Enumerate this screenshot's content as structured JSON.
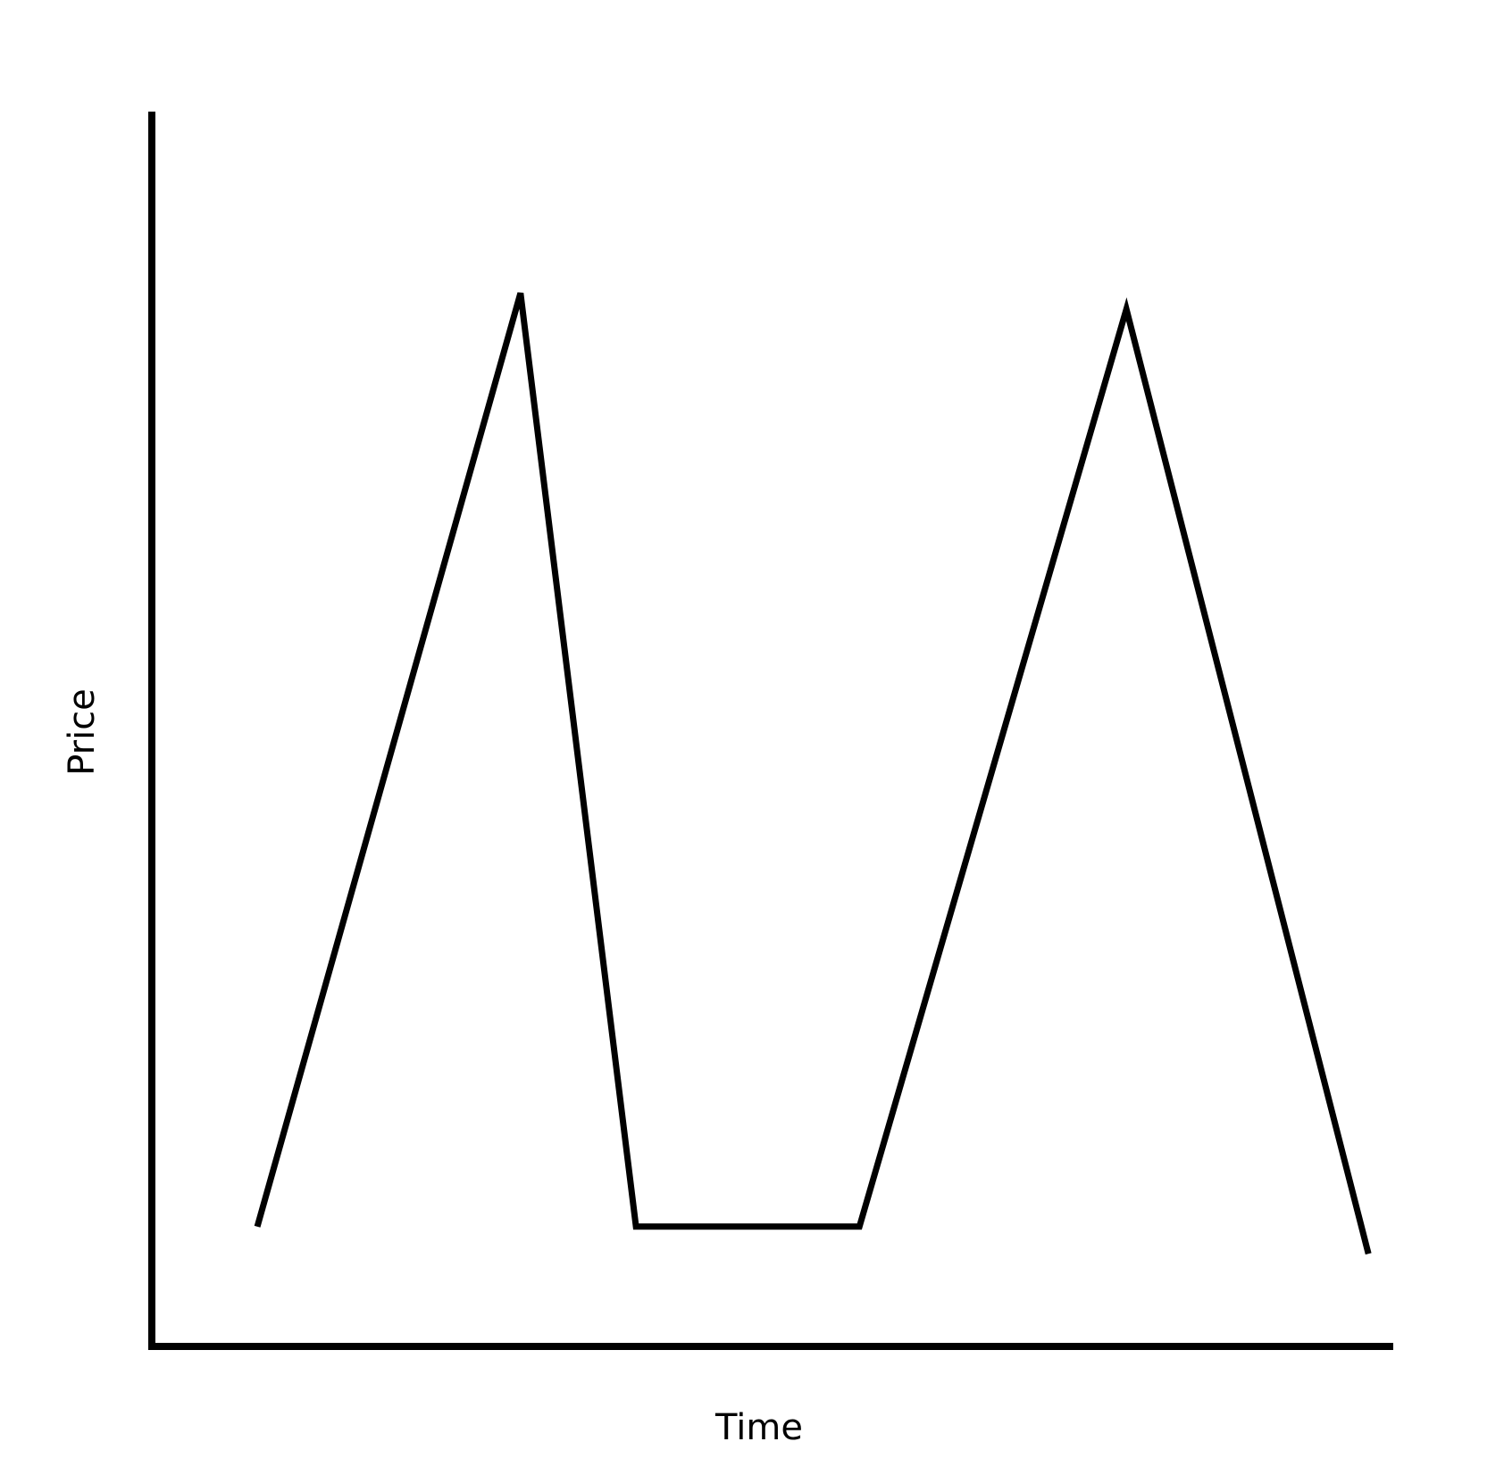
{
  "chart_data": {
    "type": "line",
    "title": "",
    "xlabel": "Time",
    "ylabel": "Price",
    "xlim": [
      0,
      100
    ],
    "ylim": [
      0,
      100
    ],
    "grid": false,
    "ticks": false,
    "line_color": "#000000",
    "series": [
      {
        "x": [
          8.5,
          29.7,
          39.0,
          57.0,
          78.5,
          98.0
        ],
        "y": [
          9.7,
          85.3,
          9.7,
          9.7,
          84.0,
          7.5
        ]
      }
    ]
  }
}
